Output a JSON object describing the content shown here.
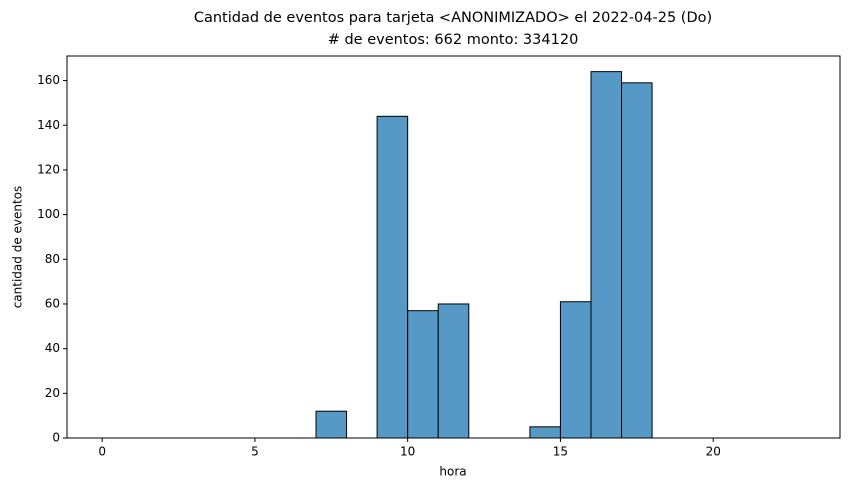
{
  "chart_data": {
    "type": "histogram",
    "title": [
      "Cantidad de eventos para tarjeta <ANONIMIZADO> el 2022-04-25 (Do)",
      "# de eventos: 662 monto: 334120"
    ],
    "xlabel": "hora",
    "ylabel": "cantidad de eventos",
    "bins": [
      0,
      1,
      2,
      3,
      4,
      5,
      6,
      7,
      8,
      9,
      10,
      11,
      12,
      13,
      14,
      15,
      16,
      17,
      18,
      19,
      20,
      21,
      22,
      23
    ],
    "values": [
      0,
      0,
      0,
      0,
      0,
      0,
      0,
      12,
      0,
      144,
      57,
      60,
      0,
      0,
      5,
      61,
      164,
      159,
      0,
      0,
      0,
      0,
      0
    ],
    "color": "#5799c6",
    "edgecolor": "#000000",
    "xlim": [
      -1.15,
      24.15
    ],
    "ylim": [
      0,
      171
    ],
    "xticks": [
      0,
      5,
      10,
      15,
      20
    ],
    "yticks": [
      0,
      20,
      40,
      60,
      80,
      100,
      120,
      140,
      160
    ]
  }
}
